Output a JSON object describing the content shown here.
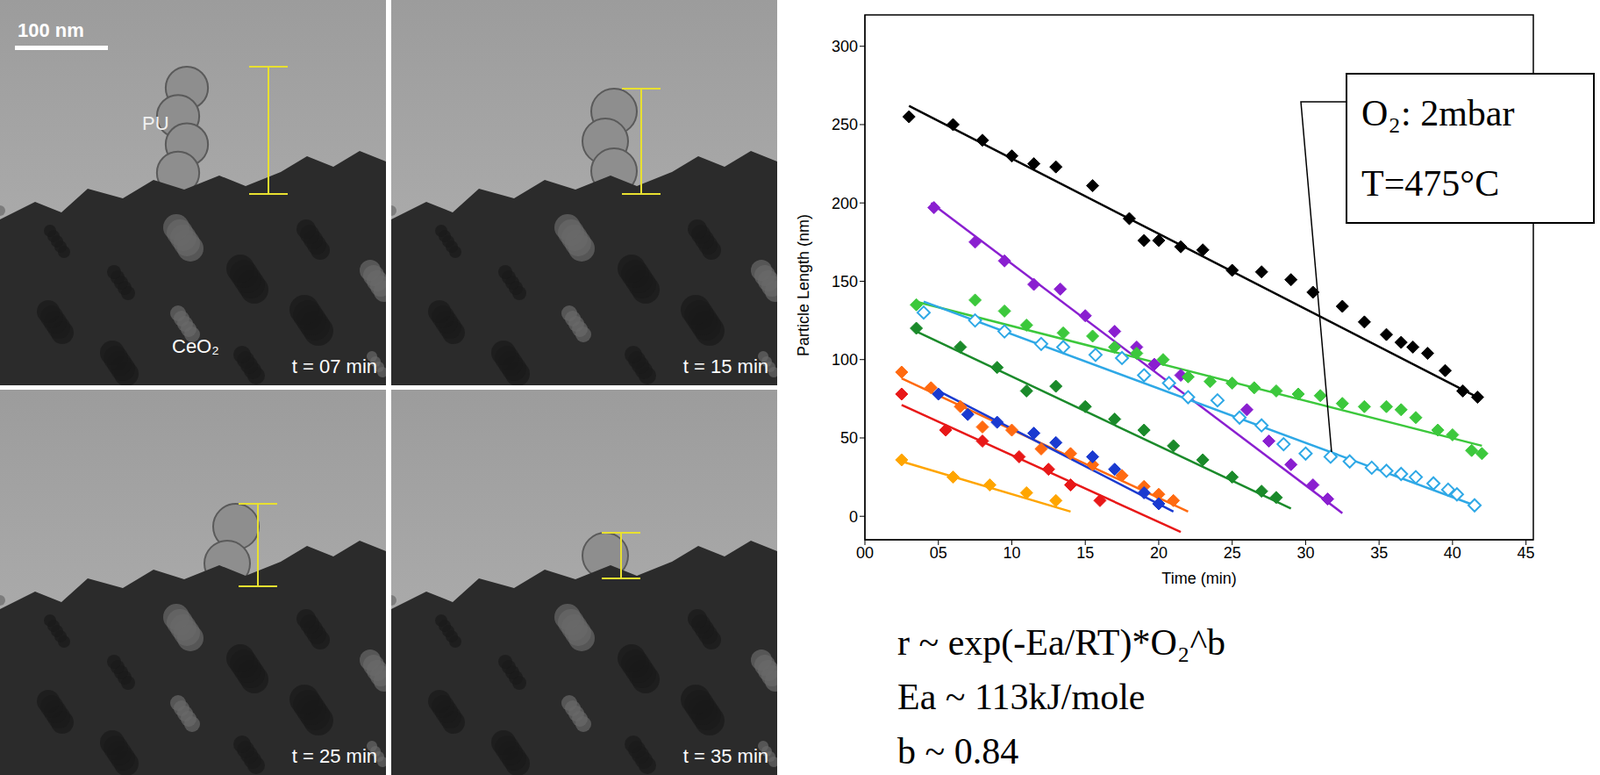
{
  "chart_data": {
    "type": "scatter",
    "xlabel": "Time (min)",
    "ylabel": "Particle Length (nm)",
    "xlim": [
      0,
      45.5
    ],
    "ylim": [
      -15,
      320
    ],
    "xticks": [
      {
        "value": 0,
        "label": "00"
      },
      {
        "value": 5,
        "label": "05"
      },
      10,
      15,
      20,
      25,
      30,
      35,
      40,
      45
    ],
    "yticks": [
      0,
      50,
      100,
      150,
      200,
      250,
      300
    ],
    "grid": false,
    "series": [
      {
        "color": "#000000",
        "marker": "diamond",
        "x": [
          3,
          6,
          8,
          10,
          11.5,
          13,
          15.5,
          18,
          19,
          20,
          21.5,
          23,
          25,
          27,
          29,
          30.5,
          32.5,
          34,
          35.5,
          36.5,
          37.3,
          38.3,
          39.5,
          40.7,
          41.7
        ],
        "y": [
          255,
          250,
          240,
          230,
          225,
          223,
          211,
          190,
          176,
          176,
          172,
          170,
          157,
          156,
          151,
          143,
          134,
          124,
          116,
          111,
          108,
          104,
          93,
          80,
          76
        ],
        "fit_x": [
          3,
          41.7
        ],
        "fit_y": [
          262,
          76
        ]
      },
      {
        "color": "#8a1fd0",
        "marker": "diamond",
        "x": [
          4.7,
          7.5,
          9.5,
          11.5,
          13.3,
          15,
          17,
          18.5,
          19.7,
          21.5,
          26,
          27.5,
          29,
          30.5,
          31.5
        ],
        "y": [
          197,
          175,
          163,
          148,
          145,
          128,
          118,
          108,
          97,
          90,
          68,
          48,
          33,
          20,
          11
        ],
        "fit_x": [
          4.5,
          32.5
        ],
        "fit_y": [
          200,
          2
        ]
      },
      {
        "color": "#3cc83c",
        "marker": "diamond",
        "x": [
          3.5,
          7.5,
          9.5,
          11,
          13.5,
          15.5,
          17,
          18.5,
          20.3,
          22,
          23.5,
          25,
          26.5,
          28,
          29.5,
          31,
          32.5,
          34,
          35.5,
          36.5,
          37.5,
          39,
          40,
          41.3,
          42
        ],
        "y": [
          135,
          138,
          131,
          122,
          117,
          115,
          108,
          104,
          100,
          89,
          86,
          85,
          82,
          80,
          78,
          77,
          72,
          70,
          70,
          68,
          63,
          55,
          52,
          42,
          40
        ],
        "fit_x": [
          3.5,
          42
        ],
        "fit_y": [
          137,
          45
        ]
      },
      {
        "color": "#2ea8e6",
        "marker": "open_diamond",
        "x": [
          4,
          7.5,
          9.5,
          12,
          13.5,
          15.7,
          17.5,
          19,
          20.7,
          22,
          24,
          25.5,
          27,
          28.5,
          30,
          31.7,
          33,
          34.5,
          35.5,
          36.5,
          37.5,
          38.7,
          39.7,
          40.3,
          41.5
        ],
        "y": [
          130,
          125,
          118,
          110,
          108,
          103,
          101,
          90,
          85,
          76,
          74,
          63,
          58,
          46,
          40,
          38,
          35,
          31,
          29,
          27,
          25,
          21,
          17,
          14,
          7
        ],
        "fit_x": [
          4,
          41.5
        ],
        "fit_y": [
          137,
          7
        ]
      },
      {
        "color": "#1a8a2a",
        "marker": "diamond",
        "x": [
          3.5,
          6.5,
          9,
          11,
          13,
          15,
          17,
          19,
          21,
          23,
          25,
          27,
          28
        ],
        "y": [
          120,
          108,
          95,
          80,
          83,
          70,
          62,
          55,
          45,
          36,
          25,
          16,
          12
        ],
        "fit_x": [
          3.5,
          29
        ],
        "fit_y": [
          118,
          5
        ]
      },
      {
        "color": "#ff6a10",
        "marker": "diamond",
        "x": [
          2.5,
          4.5,
          6.5,
          8,
          10,
          12,
          14,
          15.5,
          17.5,
          19,
          20,
          21
        ],
        "y": [
          92,
          82,
          70,
          57,
          55,
          43,
          40,
          33,
          26,
          19,
          14,
          10
        ],
        "fit_x": [
          2.5,
          22
        ],
        "fit_y": [
          88,
          3
        ]
      },
      {
        "color": "#1a3ad0",
        "marker": "diamond",
        "x": [
          5,
          7,
          9,
          11.5,
          13,
          15.5,
          17,
          19,
          20
        ],
        "y": [
          78,
          65,
          60,
          53,
          47,
          38,
          30,
          15,
          8
        ],
        "fit_x": [
          5,
          21
        ],
        "fit_y": [
          80,
          3
        ]
      },
      {
        "color": "#e81818",
        "marker": "diamond",
        "x": [
          2.5,
          5.5,
          8,
          10.5,
          12.5,
          14,
          16
        ],
        "y": [
          78,
          55,
          48,
          38,
          30,
          20,
          10
        ],
        "fit_x": [
          2.5,
          21.5
        ],
        "fit_y": [
          71,
          -10
        ]
      },
      {
        "color": "#ffa500",
        "marker": "diamond",
        "x": [
          2.5,
          6,
          8.5,
          11,
          13
        ],
        "y": [
          36,
          25,
          20,
          15,
          10
        ],
        "fit_x": [
          2.5,
          14
        ],
        "fit_y": [
          35,
          3
        ]
      }
    ],
    "annotation": [
      "O₂: 2mbar",
      "T=475°C"
    ]
  },
  "formula": [
    "r ~ exp(-Ea/RT)*O₂^b",
    "Ea ~ 113kJ/mole",
    "b ~ 0.84"
  ],
  "images": {
    "scale_bar": "100 nm",
    "particle_label": "PU",
    "support_label": "CeO₂",
    "frames": [
      "t = 07 min",
      "t = 15 min",
      "t = 25 min",
      "t = 35 min"
    ]
  }
}
